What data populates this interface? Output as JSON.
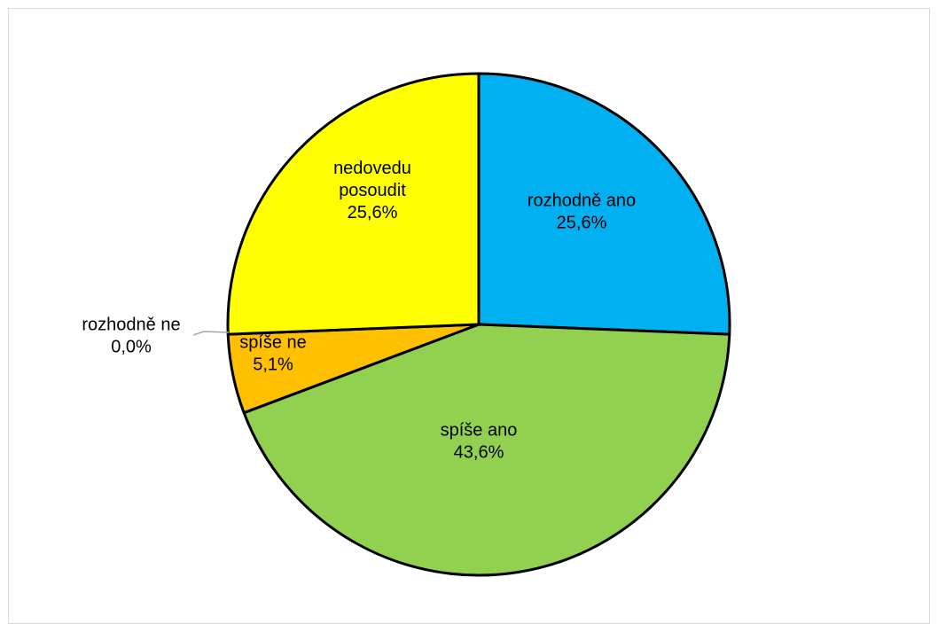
{
  "chart_data": {
    "type": "pie",
    "title": "",
    "slices": [
      {
        "label": "rozhodně ano",
        "value": 25.6,
        "display": "25,6%",
        "color": "#00B0F0",
        "label_lines": [
          "rozhodně ano"
        ]
      },
      {
        "label": "spíše ano",
        "value": 43.6,
        "display": "43,6%",
        "color": "#92D050",
        "label_lines": [
          "spíše ano"
        ]
      },
      {
        "label": "spíše ne",
        "value": 5.1,
        "display": "5,1%",
        "color": "#FFC000",
        "label_lines": [
          "spíše ne"
        ]
      },
      {
        "label": "rozhodně ne",
        "value": 0.0,
        "display": "0,0%",
        "color": "#C00000",
        "label_lines": [
          "rozhodně ne"
        ]
      },
      {
        "label": "nedovedu posoudit",
        "value": 25.6,
        "display": "25,6%",
        "color": "#FFFF00",
        "label_lines": [
          "nedovedu",
          "posoudit"
        ]
      }
    ],
    "start": "top, clockwise",
    "slice_border_color": "#000000",
    "legend": "none",
    "data_labels": "category name and percentage"
  }
}
